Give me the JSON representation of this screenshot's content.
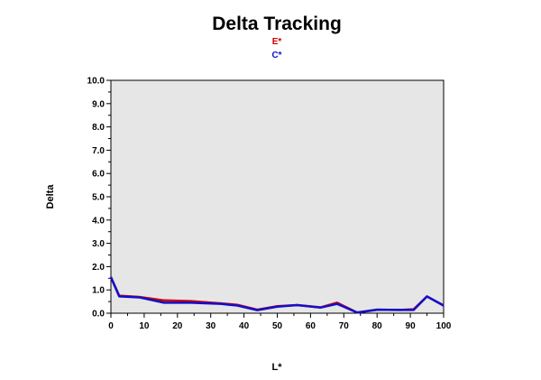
{
  "chart_data": {
    "type": "line",
    "title": "Delta Tracking",
    "xlabel": "L*",
    "ylabel": "Delta",
    "xlim": [
      0,
      100
    ],
    "ylim": [
      0,
      10
    ],
    "x_ticks": [
      "0",
      "10",
      "20",
      "30",
      "40",
      "50",
      "60",
      "70",
      "80",
      "90",
      "100"
    ],
    "y_ticks": [
      "0.0",
      "1.0",
      "2.0",
      "3.0",
      "4.0",
      "5.0",
      "6.0",
      "7.0",
      "8.0",
      "9.0",
      "10.0"
    ],
    "legend_position": "top-center",
    "background": "#e6e6e6",
    "series": [
      {
        "name": "E*",
        "color": "#cc0000",
        "x": [
          0,
          2.5,
          8.5,
          16,
          24,
          33,
          38,
          44,
          50,
          56,
          63,
          68,
          74,
          80,
          87,
          91,
          95,
          100
        ],
        "y": [
          1.55,
          0.75,
          0.7,
          0.55,
          0.52,
          0.42,
          0.36,
          0.15,
          0.3,
          0.35,
          0.25,
          0.45,
          0.03,
          0.15,
          0.14,
          0.17,
          0.72,
          0.33
        ]
      },
      {
        "name": "C*",
        "color": "#1010cc",
        "x": [
          0,
          2.5,
          8.5,
          16,
          24,
          33,
          38,
          44,
          50,
          56,
          63,
          68,
          74,
          80,
          87,
          91,
          95,
          100
        ],
        "y": [
          1.55,
          0.72,
          0.68,
          0.45,
          0.45,
          0.4,
          0.33,
          0.13,
          0.28,
          0.35,
          0.24,
          0.4,
          0.03,
          0.15,
          0.14,
          0.14,
          0.72,
          0.33
        ]
      }
    ]
  }
}
